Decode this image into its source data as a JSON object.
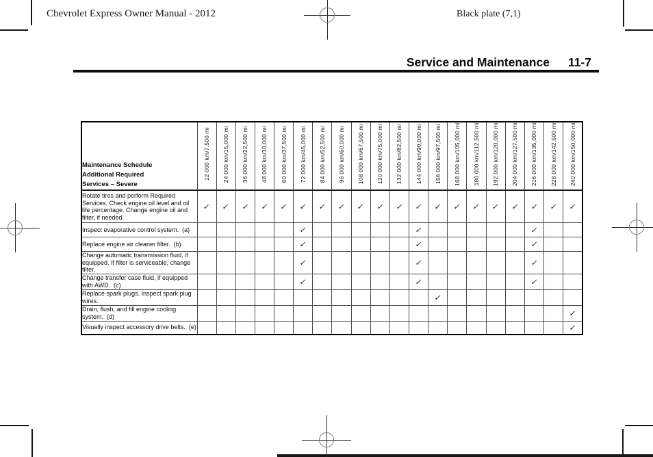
{
  "page_header": {
    "left": "Chevrolet Express Owner Manual - 2012",
    "right": "Black plate (7,1)"
  },
  "section_header": {
    "title": "Service and Maintenance",
    "page_number": "11-7"
  },
  "colors": {
    "paper": "#ffffff",
    "ink": "#111111"
  },
  "table": {
    "corner": {
      "lines": [
        "Maintenance Schedule",
        "Additional Required",
        "Services – Severe"
      ]
    },
    "check_glyph": "✓",
    "columns": [
      "12 000 km/7,500 mi",
      "24 000 km/15,000 mi",
      "36 000 km/22,500 mi",
      "48 000 km/30,000 mi",
      "60 000 km/37,500 mi",
      "72 000 km/45,000 mi",
      "84 000 km/52,500 mi",
      "96 000 km/60,000 mi",
      "108 000 km/67,500 mi",
      "120 000 km/75,000 mi",
      "132 000 km/82,500 mi",
      "144 000 km/90,000 mi",
      "156 000 km/97,500 mi",
      "168 000 km/105,000 mi",
      "180 000 km/112,500 mi",
      "192 000 km/120,000 mi",
      "204 000 km/127,500 mi",
      "216 000 km/135,000 mi",
      "228 000 km/142,500 mi",
      "240 000 km/150,000 mi"
    ],
    "rows": [
      {
        "service": "Rotate tires and perform Required Services. Check engine oil level and oil life percentage. Change engine oil and filter, if needed.",
        "checked_columns": [
          1,
          2,
          3,
          4,
          5,
          6,
          7,
          8,
          9,
          10,
          11,
          12,
          13,
          14,
          15,
          16,
          17,
          18,
          19,
          20
        ]
      },
      {
        "service": "Inspect evaporative control system.  (a)",
        "checked_columns": [
          6,
          12,
          18
        ]
      },
      {
        "service": "Replace engine air cleaner filter.  (b)",
        "checked_columns": [
          6,
          12,
          18
        ]
      },
      {
        "service": "Change automatic transmission fluid, if equipped. If filter is serviceable, change filter.",
        "checked_columns": [
          6,
          12,
          18
        ]
      },
      {
        "service": "Change transfer case fluid, if equipped with AWD.  (c)",
        "checked_columns": [
          6,
          12,
          18
        ]
      },
      {
        "service": "Replace spark plugs. Inspect spark plug wires.",
        "checked_columns": [
          13
        ]
      },
      {
        "service": "Drain, flush, and fill engine cooling system.  (d)",
        "checked_columns": [
          20
        ]
      },
      {
        "service": "Visually inspect accessory drive belts.  (e)",
        "checked_columns": [
          20
        ]
      }
    ]
  }
}
